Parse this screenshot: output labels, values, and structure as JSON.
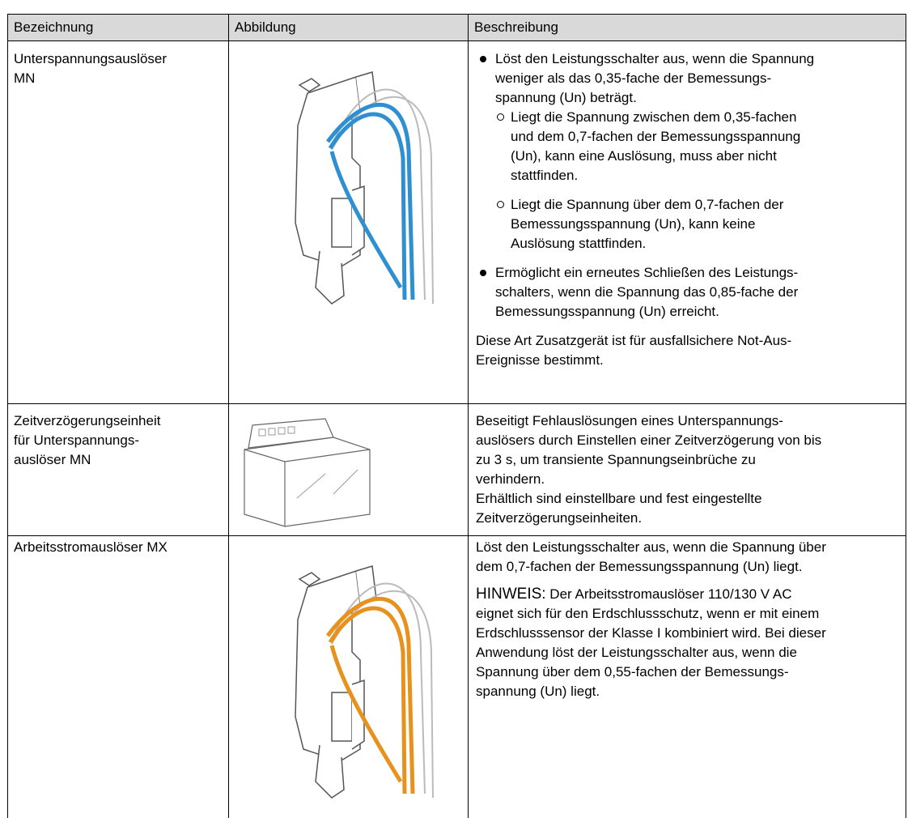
{
  "table": {
    "header": [
      "Bezeichnung",
      "Abbildung",
      "Beschreibung"
    ],
    "rows": [
      {
        "name": [
          "Unterspannungsauslöser",
          "MN"
        ],
        "bullets": [
          {
            "lines": [
              "Löst den Leistungsschalter aus, wenn die Spannung",
              "weniger als das 0,35-fache der Bemessungs-",
              "spannung (Un) beträgt."
            ],
            "sub": [
              [
                "Liegt die Spannung zwischen dem 0,35-fachen",
                "und dem 0,7-fachen der Bemessungsspannung",
                "(Un), kann eine Auslösung, muss aber nicht",
                "stattfinden."
              ],
              [
                "Liegt die Spannung über dem 0,7-fachen der",
                "Bemessungsspannung (Un), kann keine",
                "Auslösung stattfinden."
              ]
            ]
          },
          {
            "lines": [
              "Ermöglicht ein erneutes Schließen des Leistungs-",
              "schalters, wenn die Spannung das 0,85-fache der",
              "Bemessungsspannung (Un) erreicht."
            ]
          }
        ],
        "note": [
          "Diese Art Zusatzgerät ist für ausfallsichere Not-Aus-",
          "Ereignisse bestimmt."
        ]
      },
      {
        "name": [
          "Zeitverzögerungseinheit",
          "für Unterspannungs-",
          "auslöser MN"
        ],
        "paragraphs": [
          [
            "Beseitigt Fehlauslösungen eines Unterspannungs-",
            "auslösers durch Einstellen einer Zeitverzögerung von bis",
            "zu 3 s, um transiente Spannungseinbrüche zu",
            "verhindern."
          ],
          [
            "Erhältlich sind einstellbare und fest eingestellte",
            "Zeitverzögerungseinheiten."
          ]
        ]
      },
      {
        "name": [
          "Arbeitsstromauslöser MX"
        ],
        "paragraphs": [
          [
            "Löst den Leistungsschalter aus, wenn die Spannung über",
            "dem 0,7-fachen der Bemessungsspannung (Un) liegt."
          ]
        ],
        "hinweis": {
          "label": "HINWEIS:",
          "lines": [
            "Der Arbeitsstromauslöser 110/130 V AC",
            "eignet sich für den Erdschlussschutz, wenn er mit einem",
            "Erdschlusssensor der Klasse I kombiniert wird. Bei dieser",
            "Anwendung löst der Leistungsschalter aus, wenn die",
            "Spannung über dem 0,55-fachen der Bemessungs-",
            "spannung (Un) liegt."
          ]
        }
      }
    ]
  }
}
